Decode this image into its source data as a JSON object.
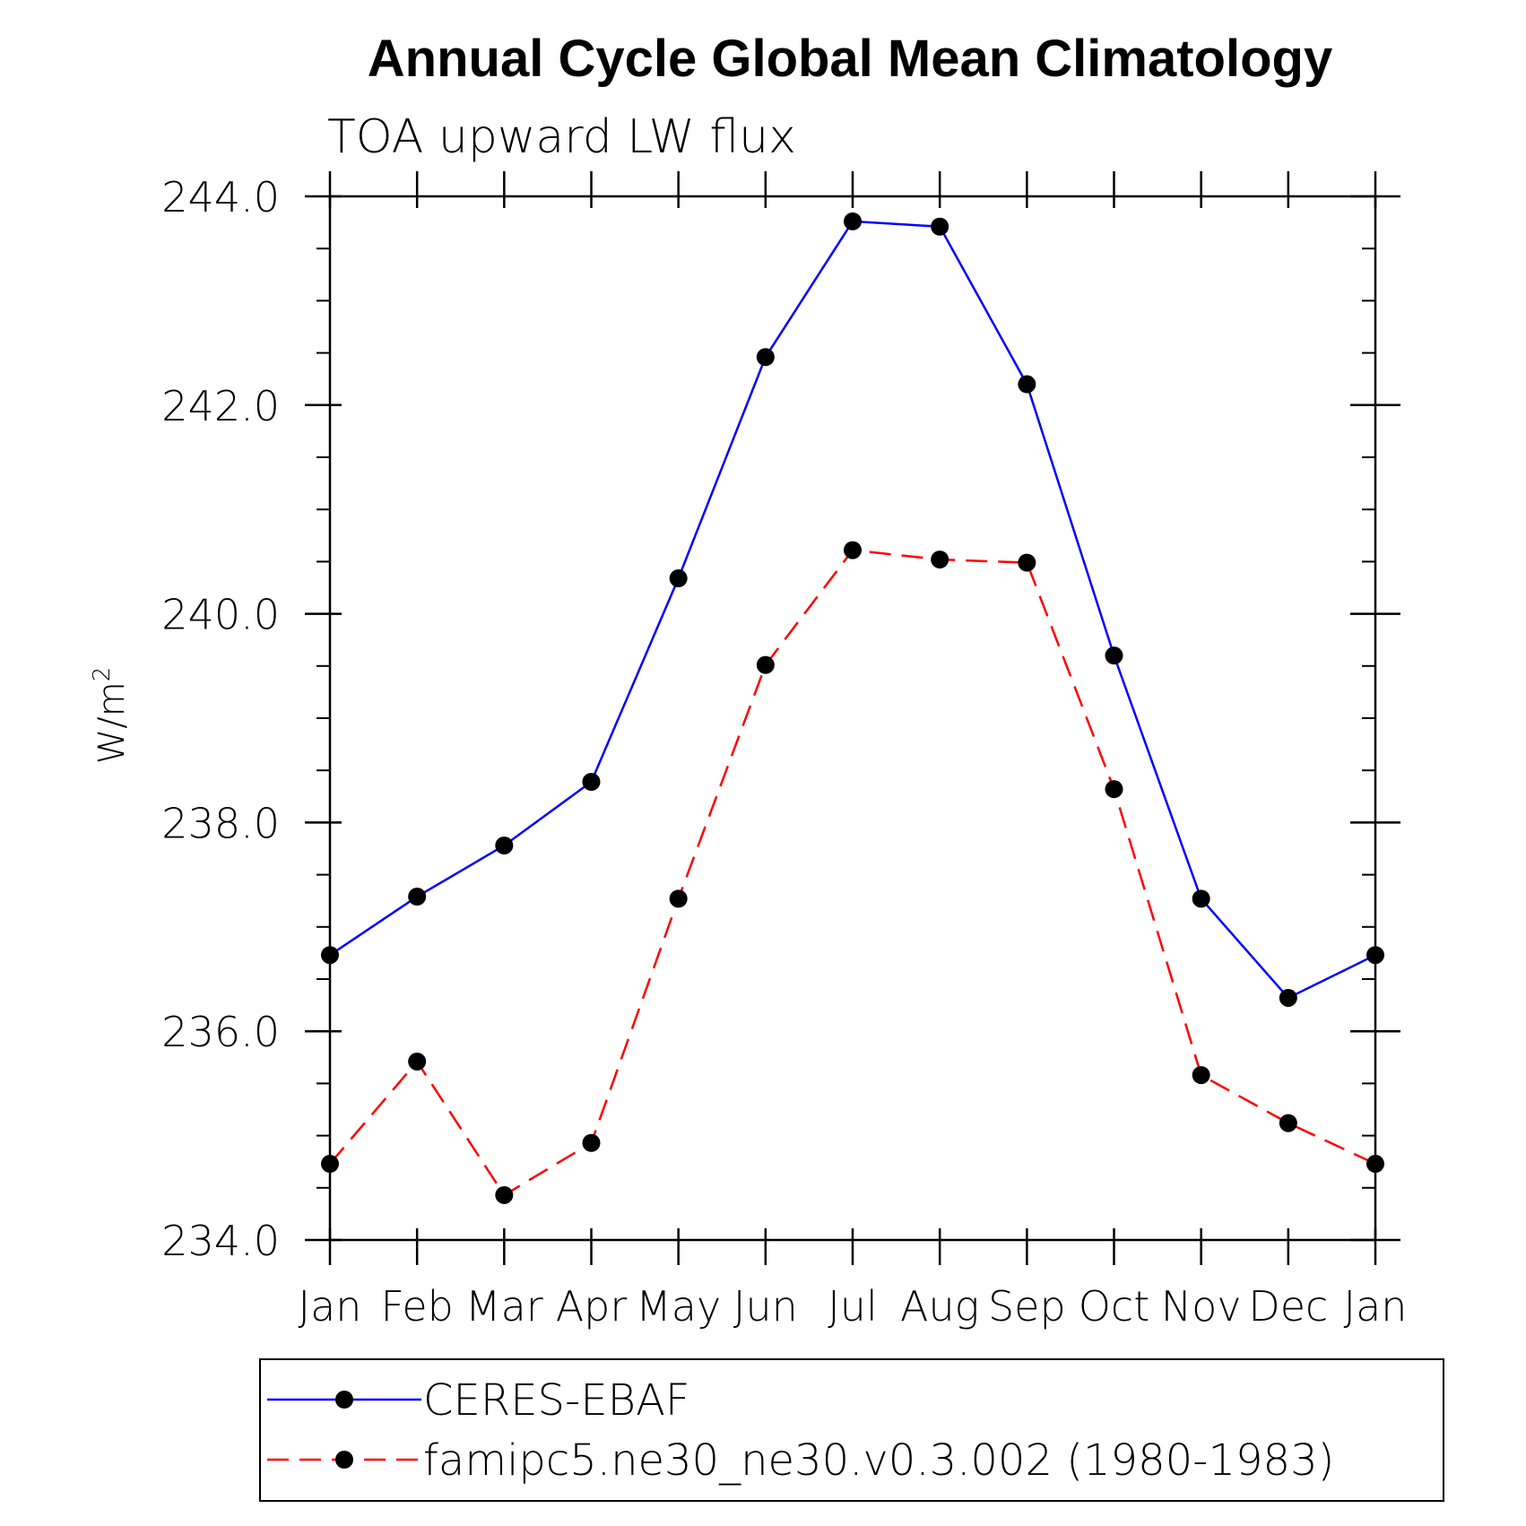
{
  "chart_data": {
    "type": "line",
    "title": "Annual Cycle Global Mean Climatology",
    "subtitle": "TOA upward LW flux",
    "ylabel": "W/m",
    "ylabel_sup": "2",
    "xlabel": "",
    "categories": [
      "Jan",
      "Feb",
      "Mar",
      "Apr",
      "May",
      "Jun",
      "Jul",
      "Aug",
      "Sep",
      "Oct",
      "Nov",
      "Dec",
      "Jan"
    ],
    "ylim": [
      234.0,
      244.0
    ],
    "yticks": [
      234.0,
      236.0,
      238.0,
      240.0,
      242.0,
      244.0
    ],
    "ytick_labels": [
      "234.0",
      "236.0",
      "238.0",
      "240.0",
      "242.0",
      "244.0"
    ],
    "y_minor_step": 0.5,
    "grid": false,
    "legend_position": "bottom",
    "series": [
      {
        "name": "CERES-EBAF",
        "color": "#0000ff",
        "dash": "solid",
        "marker": "filled-circle",
        "values": [
          236.73,
          237.29,
          237.78,
          238.39,
          240.34,
          242.46,
          243.76,
          243.71,
          242.2,
          239.6,
          237.27,
          236.32,
          236.73
        ]
      },
      {
        "name": "famipc5.ne30_ne30.v0.3.002 (1980-1983)",
        "color": "#ff0000",
        "dash": "dashed",
        "marker": "filled-circle",
        "values": [
          234.73,
          235.71,
          234.43,
          234.93,
          237.27,
          239.51,
          240.61,
          240.52,
          240.49,
          238.32,
          235.58,
          235.12,
          234.73
        ]
      }
    ]
  }
}
